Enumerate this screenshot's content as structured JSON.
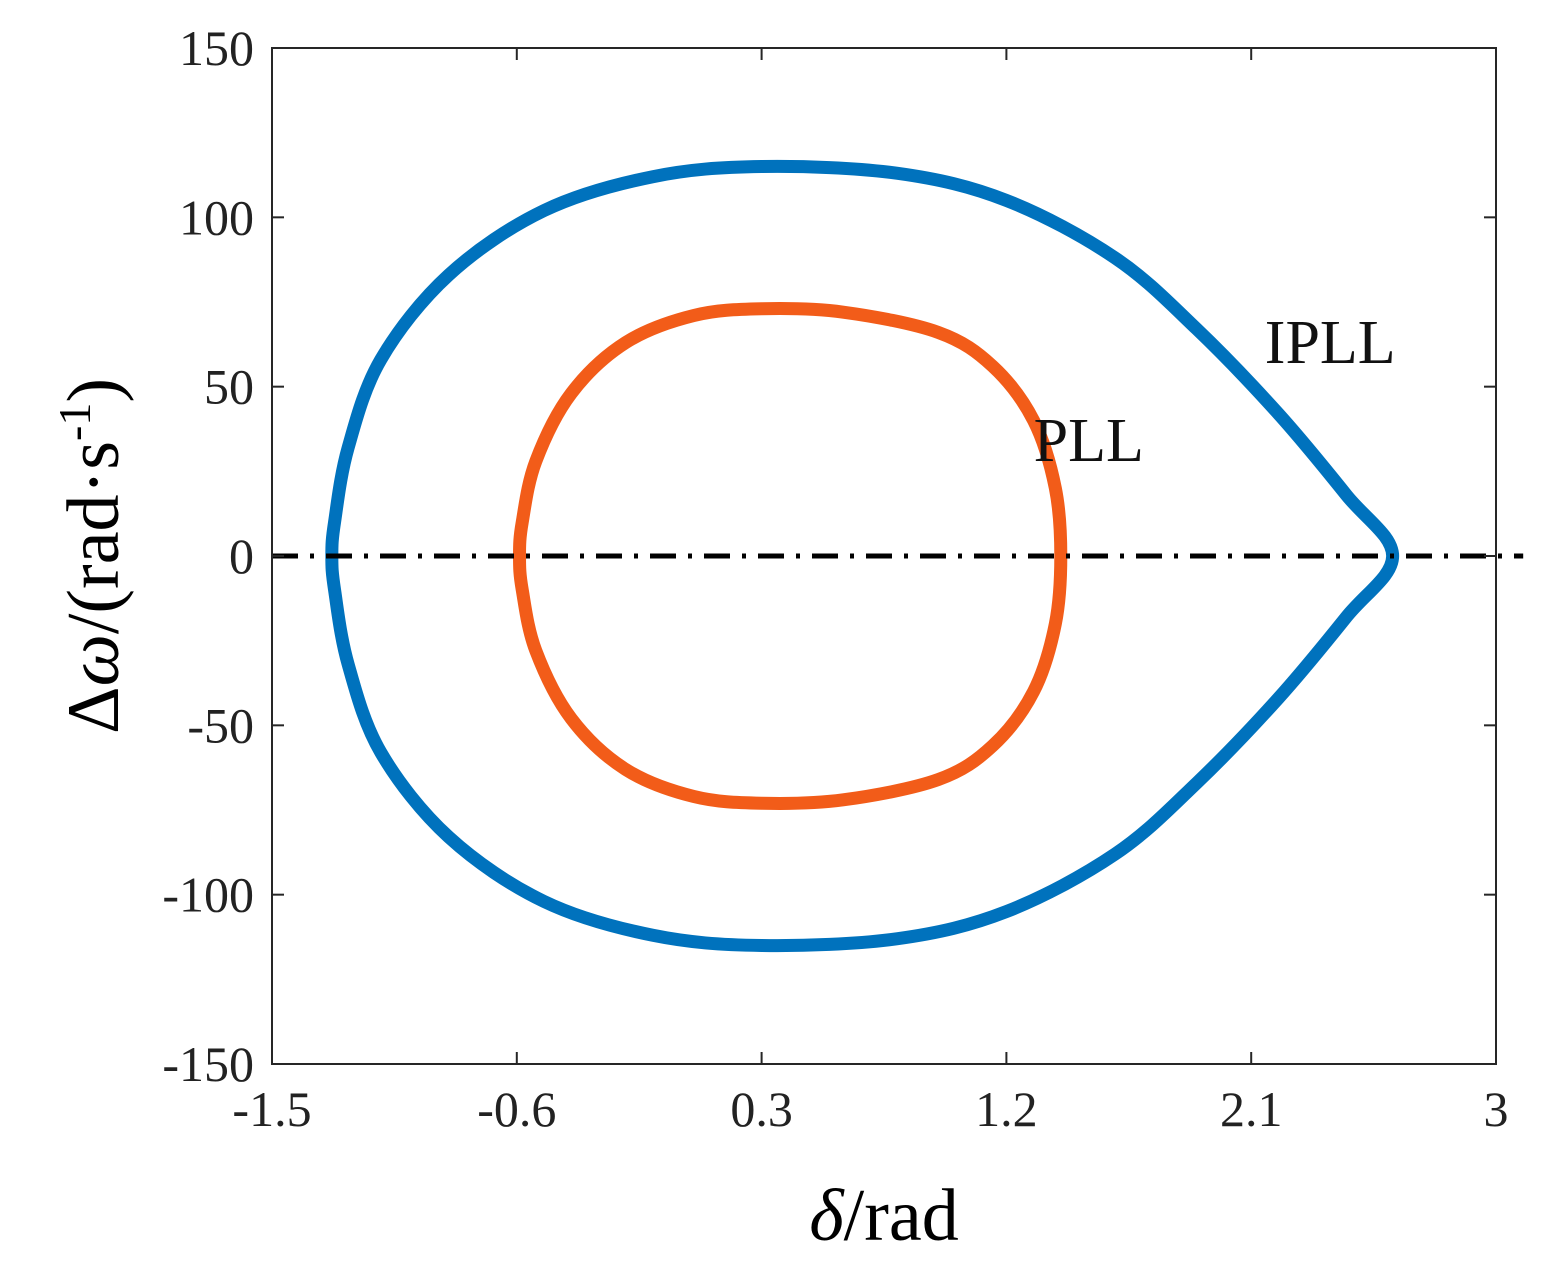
{
  "chart_data": {
    "type": "line",
    "xlabel": "δ/rad",
    "ylabel": "Δω/(rad·s-1)",
    "xlim": [
      -1.5,
      3
    ],
    "ylim": [
      -150,
      150
    ],
    "xticks": [
      -1.5,
      -0.6,
      0.3,
      1.2,
      2.1,
      3
    ],
    "xtick_labels": [
      "-1.5",
      "-0.6",
      "0.3",
      "1.2",
      "2.1",
      "3"
    ],
    "yticks": [
      -150,
      -100,
      -50,
      0,
      50,
      100,
      150
    ],
    "ytick_labels": [
      "-150",
      "-100",
      "-50",
      "0",
      "50",
      "100",
      "150"
    ],
    "grid": false,
    "series": [
      {
        "name": "IPLL",
        "color": "#0072BD",
        "closed": true,
        "points": [
          [
            2.62,
            0
          ],
          [
            2.45,
            18
          ],
          [
            2.2,
            42
          ],
          [
            1.9,
            67
          ],
          [
            1.6,
            88
          ],
          [
            1.2,
            105
          ],
          [
            0.8,
            113
          ],
          [
            0.3,
            115
          ],
          [
            -0.1,
            112
          ],
          [
            -0.5,
            102
          ],
          [
            -0.85,
            83
          ],
          [
            -1.1,
            58
          ],
          [
            -1.22,
            32
          ],
          [
            -1.27,
            10
          ],
          [
            -1.28,
            0
          ],
          [
            -1.27,
            -10
          ],
          [
            -1.22,
            -32
          ],
          [
            -1.1,
            -58
          ],
          [
            -0.85,
            -83
          ],
          [
            -0.5,
            -102
          ],
          [
            -0.1,
            -112
          ],
          [
            0.3,
            -115
          ],
          [
            0.8,
            -113
          ],
          [
            1.2,
            -105
          ],
          [
            1.6,
            -88
          ],
          [
            1.9,
            -67
          ],
          [
            2.2,
            -42
          ],
          [
            2.45,
            -18
          ],
          [
            2.62,
            0
          ]
        ]
      },
      {
        "name": "PLL",
        "color": "#F25C19",
        "closed": true,
        "points": [
          [
            1.4,
            0
          ],
          [
            1.38,
            20
          ],
          [
            1.3,
            40
          ],
          [
            1.15,
            56
          ],
          [
            0.95,
            66
          ],
          [
            0.6,
            72
          ],
          [
            0.3,
            73
          ],
          [
            0.05,
            71
          ],
          [
            -0.2,
            63
          ],
          [
            -0.4,
            48
          ],
          [
            -0.53,
            28
          ],
          [
            -0.58,
            10
          ],
          [
            -0.59,
            0
          ],
          [
            -0.58,
            -10
          ],
          [
            -0.53,
            -28
          ],
          [
            -0.4,
            -48
          ],
          [
            -0.2,
            -63
          ],
          [
            0.05,
            -71
          ],
          [
            0.3,
            -73
          ],
          [
            0.6,
            -72
          ],
          [
            0.95,
            -66
          ],
          [
            1.15,
            -56
          ],
          [
            1.3,
            -40
          ],
          [
            1.38,
            -20
          ],
          [
            1.4,
            0
          ]
        ]
      }
    ],
    "reference_line": {
      "y": 0,
      "x_range": [
        -1.5,
        3.1
      ],
      "color": "#000000",
      "style": "dash-dot"
    },
    "annotations": [
      {
        "text": "IPLL",
        "x": 2.15,
        "y": 57
      },
      {
        "text": "PLL",
        "x": 1.3,
        "y": 28
      }
    ]
  }
}
